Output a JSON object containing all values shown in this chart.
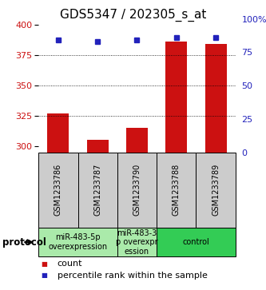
{
  "title": "GDS5347 / 202305_s_at",
  "samples": [
    "GSM1233786",
    "GSM1233787",
    "GSM1233790",
    "GSM1233788",
    "GSM1233789"
  ],
  "count_values": [
    327,
    305,
    315,
    386,
    384
  ],
  "percentile_values": [
    84,
    83,
    84,
    86,
    86
  ],
  "ylim_left": [
    295,
    405
  ],
  "ylim_right": [
    0,
    100
  ],
  "yticks_left": [
    300,
    325,
    350,
    375,
    400
  ],
  "yticks_right": [
    0,
    25,
    50,
    75,
    100
  ],
  "ytick_labels_right": [
    "0",
    "25",
    "50",
    "75",
    "100%"
  ],
  "bar_color": "#cc1111",
  "dot_color": "#2222bb",
  "grid_color": "#000000",
  "protocol_groups": [
    {
      "label": "miR-483-5p\noverexpression",
      "indices": [
        0,
        1
      ],
      "color": "#aaeaaa"
    },
    {
      "label": "miR-483-3\np overexpr\nession",
      "indices": [
        2
      ],
      "color": "#aaeaaa"
    },
    {
      "label": "control",
      "indices": [
        3,
        4
      ],
      "color": "#33cc55"
    }
  ],
  "legend_count_label": "count",
  "legend_percentile_label": "percentile rank within the sample",
  "bar_width": 0.55,
  "left_tick_color": "#cc1111",
  "right_tick_color": "#2222bb",
  "title_fontsize": 11,
  "tick_fontsize": 8,
  "sample_fontsize": 7,
  "protocol_fontsize": 7,
  "legend_fontsize": 8,
  "sample_box_color": "#cccccc",
  "bg_color": "#ffffff"
}
